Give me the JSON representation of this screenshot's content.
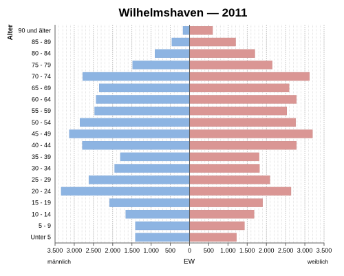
{
  "chart_data": {
    "type": "bar",
    "orientation": "horizontal",
    "title": "Wilhelmshaven — 2011",
    "ylabel": "Alter",
    "xlabel": "EW",
    "left_label": "männlich",
    "right_label": "weiblich",
    "categories": [
      "90 und älter",
      "85 - 89",
      "80 - 84",
      "75 - 79",
      "70 - 74",
      "65 - 69",
      "60 - 64",
      "55 - 59",
      "50 - 54",
      "45 - 49",
      "40 - 44",
      "35 - 39",
      "30 - 34",
      "25 - 29",
      "20 - 24",
      "15 - 19",
      "10 - 14",
      "5 - 9",
      "Unter 5"
    ],
    "series": [
      {
        "name": "männlich",
        "color": "#8db4e2",
        "values": [
          170,
          460,
          900,
          1480,
          2780,
          2350,
          2430,
          2470,
          2850,
          3130,
          2790,
          1800,
          1950,
          2620,
          3340,
          2080,
          1660,
          1410,
          1410
        ]
      },
      {
        "name": "weiblich",
        "color": "#da9694",
        "values": [
          600,
          1200,
          1700,
          2150,
          3120,
          2590,
          2780,
          2530,
          2760,
          3200,
          2780,
          1810,
          1820,
          2090,
          2640,
          1900,
          1680,
          1430,
          1220
        ]
      }
    ],
    "xlim": [
      -3500,
      3500
    ],
    "xticks": [
      -3500,
      -3000,
      -2500,
      -2000,
      -1500,
      -1000,
      -500,
      0,
      500,
      1000,
      1500,
      2000,
      2500,
      3000,
      3500
    ],
    "xtick_labels": [
      "3.500",
      "3.000",
      "2.500",
      "2.000",
      "1.500",
      "1.000",
      "500",
      "0",
      "500",
      "1.000",
      "1.500",
      "2.000",
      "2.500",
      "3.000",
      "3.500"
    ],
    "grid": true
  }
}
